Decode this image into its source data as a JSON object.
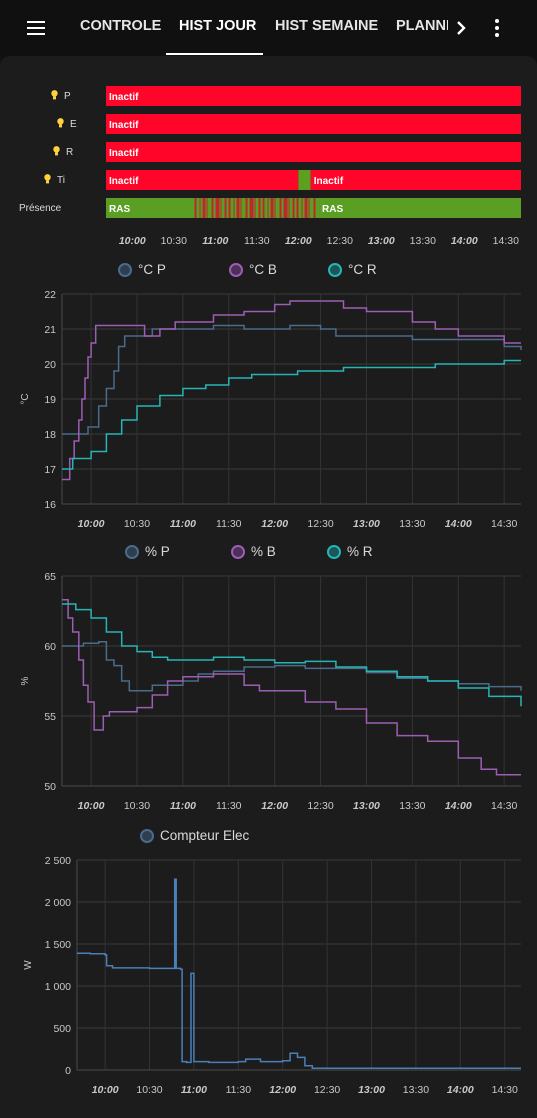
{
  "topbar": {
    "tabs": [
      {
        "label": "CONTROLE"
      },
      {
        "label": "HIST JOUR"
      },
      {
        "label": "HIST SEMAINE"
      },
      {
        "label": "PLANNING"
      }
    ]
  },
  "timeline": {
    "rows": [
      {
        "label": "P",
        "icon": "lightbulb-icon",
        "segments": [
          {
            "from": "09:41",
            "to": "14:41",
            "state": "Inactif"
          }
        ]
      },
      {
        "label": "E",
        "icon": "lightbulb-icon",
        "segments": [
          {
            "from": "09:41",
            "to": "14:41",
            "state": "Inactif"
          }
        ]
      },
      {
        "label": "R",
        "icon": "lightbulb-icon",
        "segments": [
          {
            "from": "09:41",
            "to": "14:41",
            "state": "Inactif"
          }
        ]
      },
      {
        "label": "Ti",
        "icon": "lightbulb-icon",
        "segments": [
          {
            "from": "09:41",
            "to": "12:00",
            "state": "Inactif"
          },
          {
            "from": "12:00",
            "to": "12:09",
            "state": "Actif"
          },
          {
            "from": "12:09",
            "to": "14:41",
            "state": "Inactif"
          }
        ]
      },
      {
        "label": "Présence",
        "icon": "",
        "segments": [
          {
            "from": "09:41",
            "to": "10:45",
            "state": "RAS"
          },
          {
            "from": "10:45",
            "to": "12:15",
            "state": "Détection"
          },
          {
            "from": "12:15",
            "to": "14:41",
            "state": "RAS"
          }
        ]
      }
    ],
    "ticks": [
      "10:00",
      "10:30",
      "11:00",
      "11:30",
      "12:00",
      "12:30",
      "13:00",
      "13:30",
      "14:00",
      "14:30"
    ],
    "bold_ticks": [
      "10:00",
      "11:00",
      "12:00",
      "13:00",
      "14:00"
    ]
  },
  "chart_data": [
    {
      "type": "line",
      "title": "",
      "ylabel": "°C",
      "ylim": [
        16,
        22
      ],
      "yticks": [
        "16",
        "17",
        "18",
        "19",
        "20",
        "21",
        "22"
      ],
      "xticks": [
        "10:00",
        "10:30",
        "11:00",
        "11:30",
        "12:00",
        "12:30",
        "13:00",
        "13:30",
        "14:00",
        "14:30"
      ],
      "xlim": [
        "09:41",
        "14:41"
      ],
      "grid": true,
      "legend": "top",
      "series": [
        {
          "name": "°C P",
          "color": "#4a6b8a",
          "points": [
            [
              "09:41",
              18.0
            ],
            [
              "09:52",
              18.0
            ],
            [
              "09:58",
              18.2
            ],
            [
              "10:05",
              18.8
            ],
            [
              "10:10",
              19.3
            ],
            [
              "10:15",
              19.8
            ],
            [
              "10:18",
              20.5
            ],
            [
              "10:22",
              20.8
            ],
            [
              "10:30",
              20.8
            ],
            [
              "10:40",
              21.0
            ],
            [
              "10:50",
              21.0
            ],
            [
              "11:00",
              21.0
            ],
            [
              "11:20",
              21.1
            ],
            [
              "11:40",
              21.0
            ],
            [
              "12:00",
              21.0
            ],
            [
              "12:10",
              21.1
            ],
            [
              "12:30",
              21.0
            ],
            [
              "12:40",
              20.8
            ],
            [
              "13:00",
              20.8
            ],
            [
              "13:30",
              20.7
            ],
            [
              "14:00",
              20.7
            ],
            [
              "14:30",
              20.5
            ],
            [
              "14:41",
              20.4
            ]
          ]
        },
        {
          "name": "°C B",
          "color": "#9c5eb3",
          "points": [
            [
              "09:41",
              16.7
            ],
            [
              "09:44",
              16.7
            ],
            [
              "09:46",
              17.3
            ],
            [
              "09:49",
              17.8
            ],
            [
              "09:52",
              18.4
            ],
            [
              "09:54",
              19.0
            ],
            [
              "09:56",
              19.6
            ],
            [
              "09:58",
              20.2
            ],
            [
              "10:00",
              20.6
            ],
            [
              "10:03",
              21.1
            ],
            [
              "10:30",
              21.1
            ],
            [
              "10:35",
              20.8
            ],
            [
              "10:45",
              21.0
            ],
            [
              "10:55",
              21.2
            ],
            [
              "11:00",
              21.2
            ],
            [
              "11:20",
              21.4
            ],
            [
              "11:40",
              21.5
            ],
            [
              "12:00",
              21.7
            ],
            [
              "12:10",
              21.8
            ],
            [
              "12:30",
              21.8
            ],
            [
              "12:45",
              21.6
            ],
            [
              "13:00",
              21.5
            ],
            [
              "13:30",
              21.2
            ],
            [
              "13:45",
              21.0
            ],
            [
              "14:00",
              20.8
            ],
            [
              "14:30",
              20.6
            ],
            [
              "14:41",
              20.6
            ]
          ]
        },
        {
          "name": "°C R",
          "color": "#26b5b5",
          "points": [
            [
              "09:41",
              17.0
            ],
            [
              "09:45",
              17.0
            ],
            [
              "09:48",
              17.3
            ],
            [
              "09:55",
              17.3
            ],
            [
              "10:00",
              17.5
            ],
            [
              "10:10",
              18.0
            ],
            [
              "10:20",
              18.4
            ],
            [
              "10:30",
              18.8
            ],
            [
              "10:45",
              19.1
            ],
            [
              "11:00",
              19.3
            ],
            [
              "11:15",
              19.4
            ],
            [
              "11:30",
              19.6
            ],
            [
              "11:45",
              19.7
            ],
            [
              "12:00",
              19.7
            ],
            [
              "12:15",
              19.8
            ],
            [
              "12:30",
              19.8
            ],
            [
              "12:45",
              19.9
            ],
            [
              "13:00",
              19.9
            ],
            [
              "13:30",
              19.9
            ],
            [
              "13:45",
              20.0
            ],
            [
              "14:00",
              20.0
            ],
            [
              "14:15",
              20.0
            ],
            [
              "14:30",
              20.1
            ],
            [
              "14:41",
              20.1
            ]
          ]
        }
      ]
    },
    {
      "type": "line",
      "title": "",
      "ylabel": "%",
      "ylim": [
        50,
        65
      ],
      "yticks": [
        "50",
        "55",
        "60",
        "65"
      ],
      "xticks": [
        "10:00",
        "10:30",
        "11:00",
        "11:30",
        "12:00",
        "12:30",
        "13:00",
        "13:30",
        "14:00",
        "14:30"
      ],
      "xlim": [
        "09:41",
        "14:41"
      ],
      "grid": true,
      "legend": "top",
      "series": [
        {
          "name": "% P",
          "color": "#4a6b8a",
          "points": [
            [
              "09:41",
              60.0
            ],
            [
              "09:55",
              60.2
            ],
            [
              "10:05",
              60.3
            ],
            [
              "10:10",
              59.0
            ],
            [
              "10:15",
              58.6
            ],
            [
              "10:20",
              57.5
            ],
            [
              "10:25",
              56.8
            ],
            [
              "10:30",
              56.8
            ],
            [
              "10:40",
              57.2
            ],
            [
              "10:50",
              57.2
            ],
            [
              "11:00",
              57.5
            ],
            [
              "11:10",
              58.0
            ],
            [
              "11:20",
              58.2
            ],
            [
              "11:40",
              58.5
            ],
            [
              "12:00",
              58.6
            ],
            [
              "12:20",
              58.4
            ],
            [
              "12:40",
              58.4
            ],
            [
              "13:00",
              58.1
            ],
            [
              "13:20",
              57.7
            ],
            [
              "13:40",
              57.5
            ],
            [
              "14:00",
              57.3
            ],
            [
              "14:20",
              57.1
            ],
            [
              "14:41",
              56.8
            ]
          ]
        },
        {
          "name": "% B",
          "color": "#9c5eb3",
          "points": [
            [
              "09:41",
              63.3
            ],
            [
              "09:45",
              62.0
            ],
            [
              "09:48",
              61.0
            ],
            [
              "09:52",
              59.0
            ],
            [
              "09:55",
              57.2
            ],
            [
              "09:58",
              56.0
            ],
            [
              "10:02",
              54.0
            ],
            [
              "10:08",
              55.0
            ],
            [
              "10:12",
              55.3
            ],
            [
              "10:20",
              55.3
            ],
            [
              "10:30",
              55.6
            ],
            [
              "10:40",
              56.5
            ],
            [
              "10:50",
              57.5
            ],
            [
              "11:00",
              57.8
            ],
            [
              "11:20",
              58.0
            ],
            [
              "11:40",
              57.2
            ],
            [
              "11:50",
              56.8
            ],
            [
              "12:00",
              56.8
            ],
            [
              "12:20",
              56.0
            ],
            [
              "12:40",
              55.5
            ],
            [
              "13:00",
              54.5
            ],
            [
              "13:20",
              53.6
            ],
            [
              "13:40",
              53.2
            ],
            [
              "14:00",
              52.0
            ],
            [
              "14:15",
              51.2
            ],
            [
              "14:25",
              50.8
            ],
            [
              "14:41",
              50.8
            ]
          ]
        },
        {
          "name": "% R",
          "color": "#26b5b5",
          "points": [
            [
              "09:41",
              63.0
            ],
            [
              "09:50",
              62.6
            ],
            [
              "10:00",
              62.0
            ],
            [
              "10:10",
              61.0
            ],
            [
              "10:20",
              60.0
            ],
            [
              "10:30",
              59.6
            ],
            [
              "10:40",
              59.2
            ],
            [
              "10:50",
              59.0
            ],
            [
              "11:00",
              59.0
            ],
            [
              "11:20",
              59.2
            ],
            [
              "11:40",
              59.0
            ],
            [
              "12:00",
              58.8
            ],
            [
              "12:20",
              58.9
            ],
            [
              "12:40",
              58.5
            ],
            [
              "13:00",
              58.2
            ],
            [
              "13:20",
              57.8
            ],
            [
              "13:40",
              57.5
            ],
            [
              "14:00",
              57.0
            ],
            [
              "14:20",
              56.4
            ],
            [
              "14:41",
              55.7
            ]
          ]
        }
      ]
    },
    {
      "type": "line",
      "title": "",
      "ylabel": "W",
      "ylim": [
        0,
        2500
      ],
      "yticks": [
        "0",
        "500",
        "1000",
        "1500",
        "2000",
        "2500"
      ],
      "xticks": [
        "10:00",
        "10:30",
        "11:00",
        "11:30",
        "12:00",
        "12:30",
        "13:00",
        "13:30",
        "14:00",
        "14:30"
      ],
      "xlim": [
        "09:41",
        "14:41"
      ],
      "grid": true,
      "legend": "top",
      "series": [
        {
          "name": "Compteur Elec",
          "color": "#4a80b8",
          "points": [
            [
              "09:41",
              1390
            ],
            [
              "09:50",
              1385
            ],
            [
              "09:56",
              1385
            ],
            [
              "10:00",
              1370
            ],
            [
              "10:01",
              1240
            ],
            [
              "10:05",
              1215
            ],
            [
              "10:30",
              1210
            ],
            [
              "10:45",
              1210
            ],
            [
              "10:47",
              2270
            ],
            [
              "10:48",
              1210
            ],
            [
              "10:49",
              1210
            ],
            [
              "10:51",
              1200
            ],
            [
              "10:52",
              100
            ],
            [
              "10:55",
              90
            ],
            [
              "10:58",
              1150
            ],
            [
              "10:59",
              1150
            ],
            [
              "11:00",
              100
            ],
            [
              "11:10",
              90
            ],
            [
              "11:30",
              100
            ],
            [
              "11:35",
              130
            ],
            [
              "11:45",
              100
            ],
            [
              "12:00",
              110
            ],
            [
              "12:05",
              200
            ],
            [
              "12:10",
              150
            ],
            [
              "12:15",
              50
            ],
            [
              "12:20",
              20
            ],
            [
              "12:30",
              20
            ],
            [
              "14:41",
              20
            ]
          ]
        }
      ]
    }
  ],
  "legends": {
    "temp": [
      {
        "label": "°C P"
      },
      {
        "label": "°C B"
      },
      {
        "label": "°C R"
      }
    ],
    "hum": [
      {
        "label": "% P"
      },
      {
        "label": "% B"
      },
      {
        "label": "% R"
      }
    ],
    "power": [
      {
        "label": "Compteur Elec"
      }
    ]
  },
  "colors": {
    "inactive": "#ff0529",
    "active": "#5f9e1e",
    "presence_ras": "#5b9e24",
    "detection": "#c0272d",
    "series1": "#4a6b8a",
    "series2": "#9c5eb3",
    "series3": "#26b5b5",
    "power": "#4a80b8",
    "bulb": "#ffd23a"
  }
}
